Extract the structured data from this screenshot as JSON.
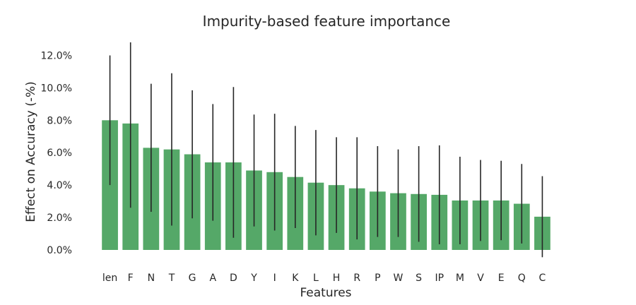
{
  "chart_data": {
    "type": "bar",
    "title": "Impurity-based feature importance",
    "xlabel": "Features",
    "ylabel": "Effect on Accuracy (-%)",
    "categories": [
      "len",
      "F",
      "N",
      "T",
      "G",
      "A",
      "D",
      "Y",
      "I",
      "K",
      "L",
      "H",
      "R",
      "P",
      "W",
      "S",
      "IP",
      "M",
      "V",
      "E",
      "Q",
      "C"
    ],
    "values": [
      8.0,
      7.8,
      6.3,
      6.2,
      5.9,
      5.4,
      5.4,
      4.9,
      4.8,
      4.5,
      4.15,
      4.0,
      3.8,
      3.6,
      3.5,
      3.45,
      3.4,
      3.05,
      3.05,
      3.05,
      2.85,
      2.05
    ],
    "errors": [
      4.0,
      5.2,
      3.95,
      4.7,
      3.95,
      3.6,
      4.65,
      3.45,
      3.6,
      3.15,
      3.25,
      2.95,
      3.15,
      2.8,
      2.7,
      2.95,
      3.05,
      2.7,
      2.5,
      2.45,
      2.45,
      2.5
    ],
    "ylim": [
      0,
      12.5
    ],
    "yticks": [
      0,
      2,
      4,
      6,
      8,
      10,
      12
    ],
    "ytick_labels": [
      "0.0%",
      "2.0%",
      "4.0%",
      "6.0%",
      "8.0%",
      "10.0%",
      "12.0%"
    ],
    "grid": false,
    "bar_color": "#55a868",
    "error_color": "#262626"
  }
}
